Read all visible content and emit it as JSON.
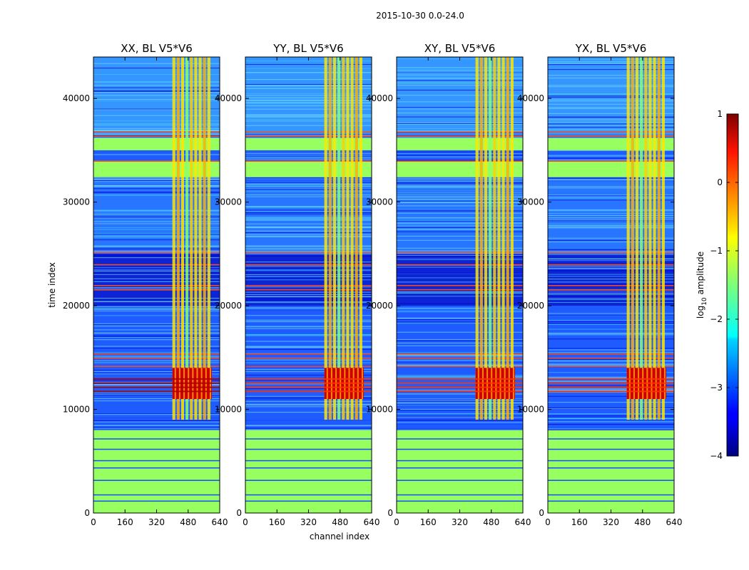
{
  "chart_data": {
    "type": "heatmap",
    "suptitle": "2015-10-30 0.0-24.0",
    "xlabel": "channel index",
    "ylabel": "time index",
    "xlim": [
      0,
      640
    ],
    "ylim": [
      0,
      44000
    ],
    "x_ticks": [
      "0",
      "160",
      "320",
      "480",
      "640"
    ],
    "y_ticks": [
      "0",
      "10000",
      "20000",
      "30000",
      "40000"
    ],
    "panels": [
      {
        "title": "XX, BL V5*V6"
      },
      {
        "title": "YY, BL V5*V6"
      },
      {
        "title": "XY, BL V5*V6"
      },
      {
        "title": "YX, BL V5*V6"
      }
    ],
    "colorbar": {
      "label": "log10 amplitude",
      "min": -4,
      "max": 1,
      "ticks": [
        "1",
        "0",
        "−1",
        "−2",
        "−3",
        "−4"
      ]
    },
    "flagged_time_bands": [
      [
        32400,
        34000
      ],
      [
        35000,
        36200
      ]
    ],
    "rfi_channel_range": [
      400,
      600
    ]
  }
}
